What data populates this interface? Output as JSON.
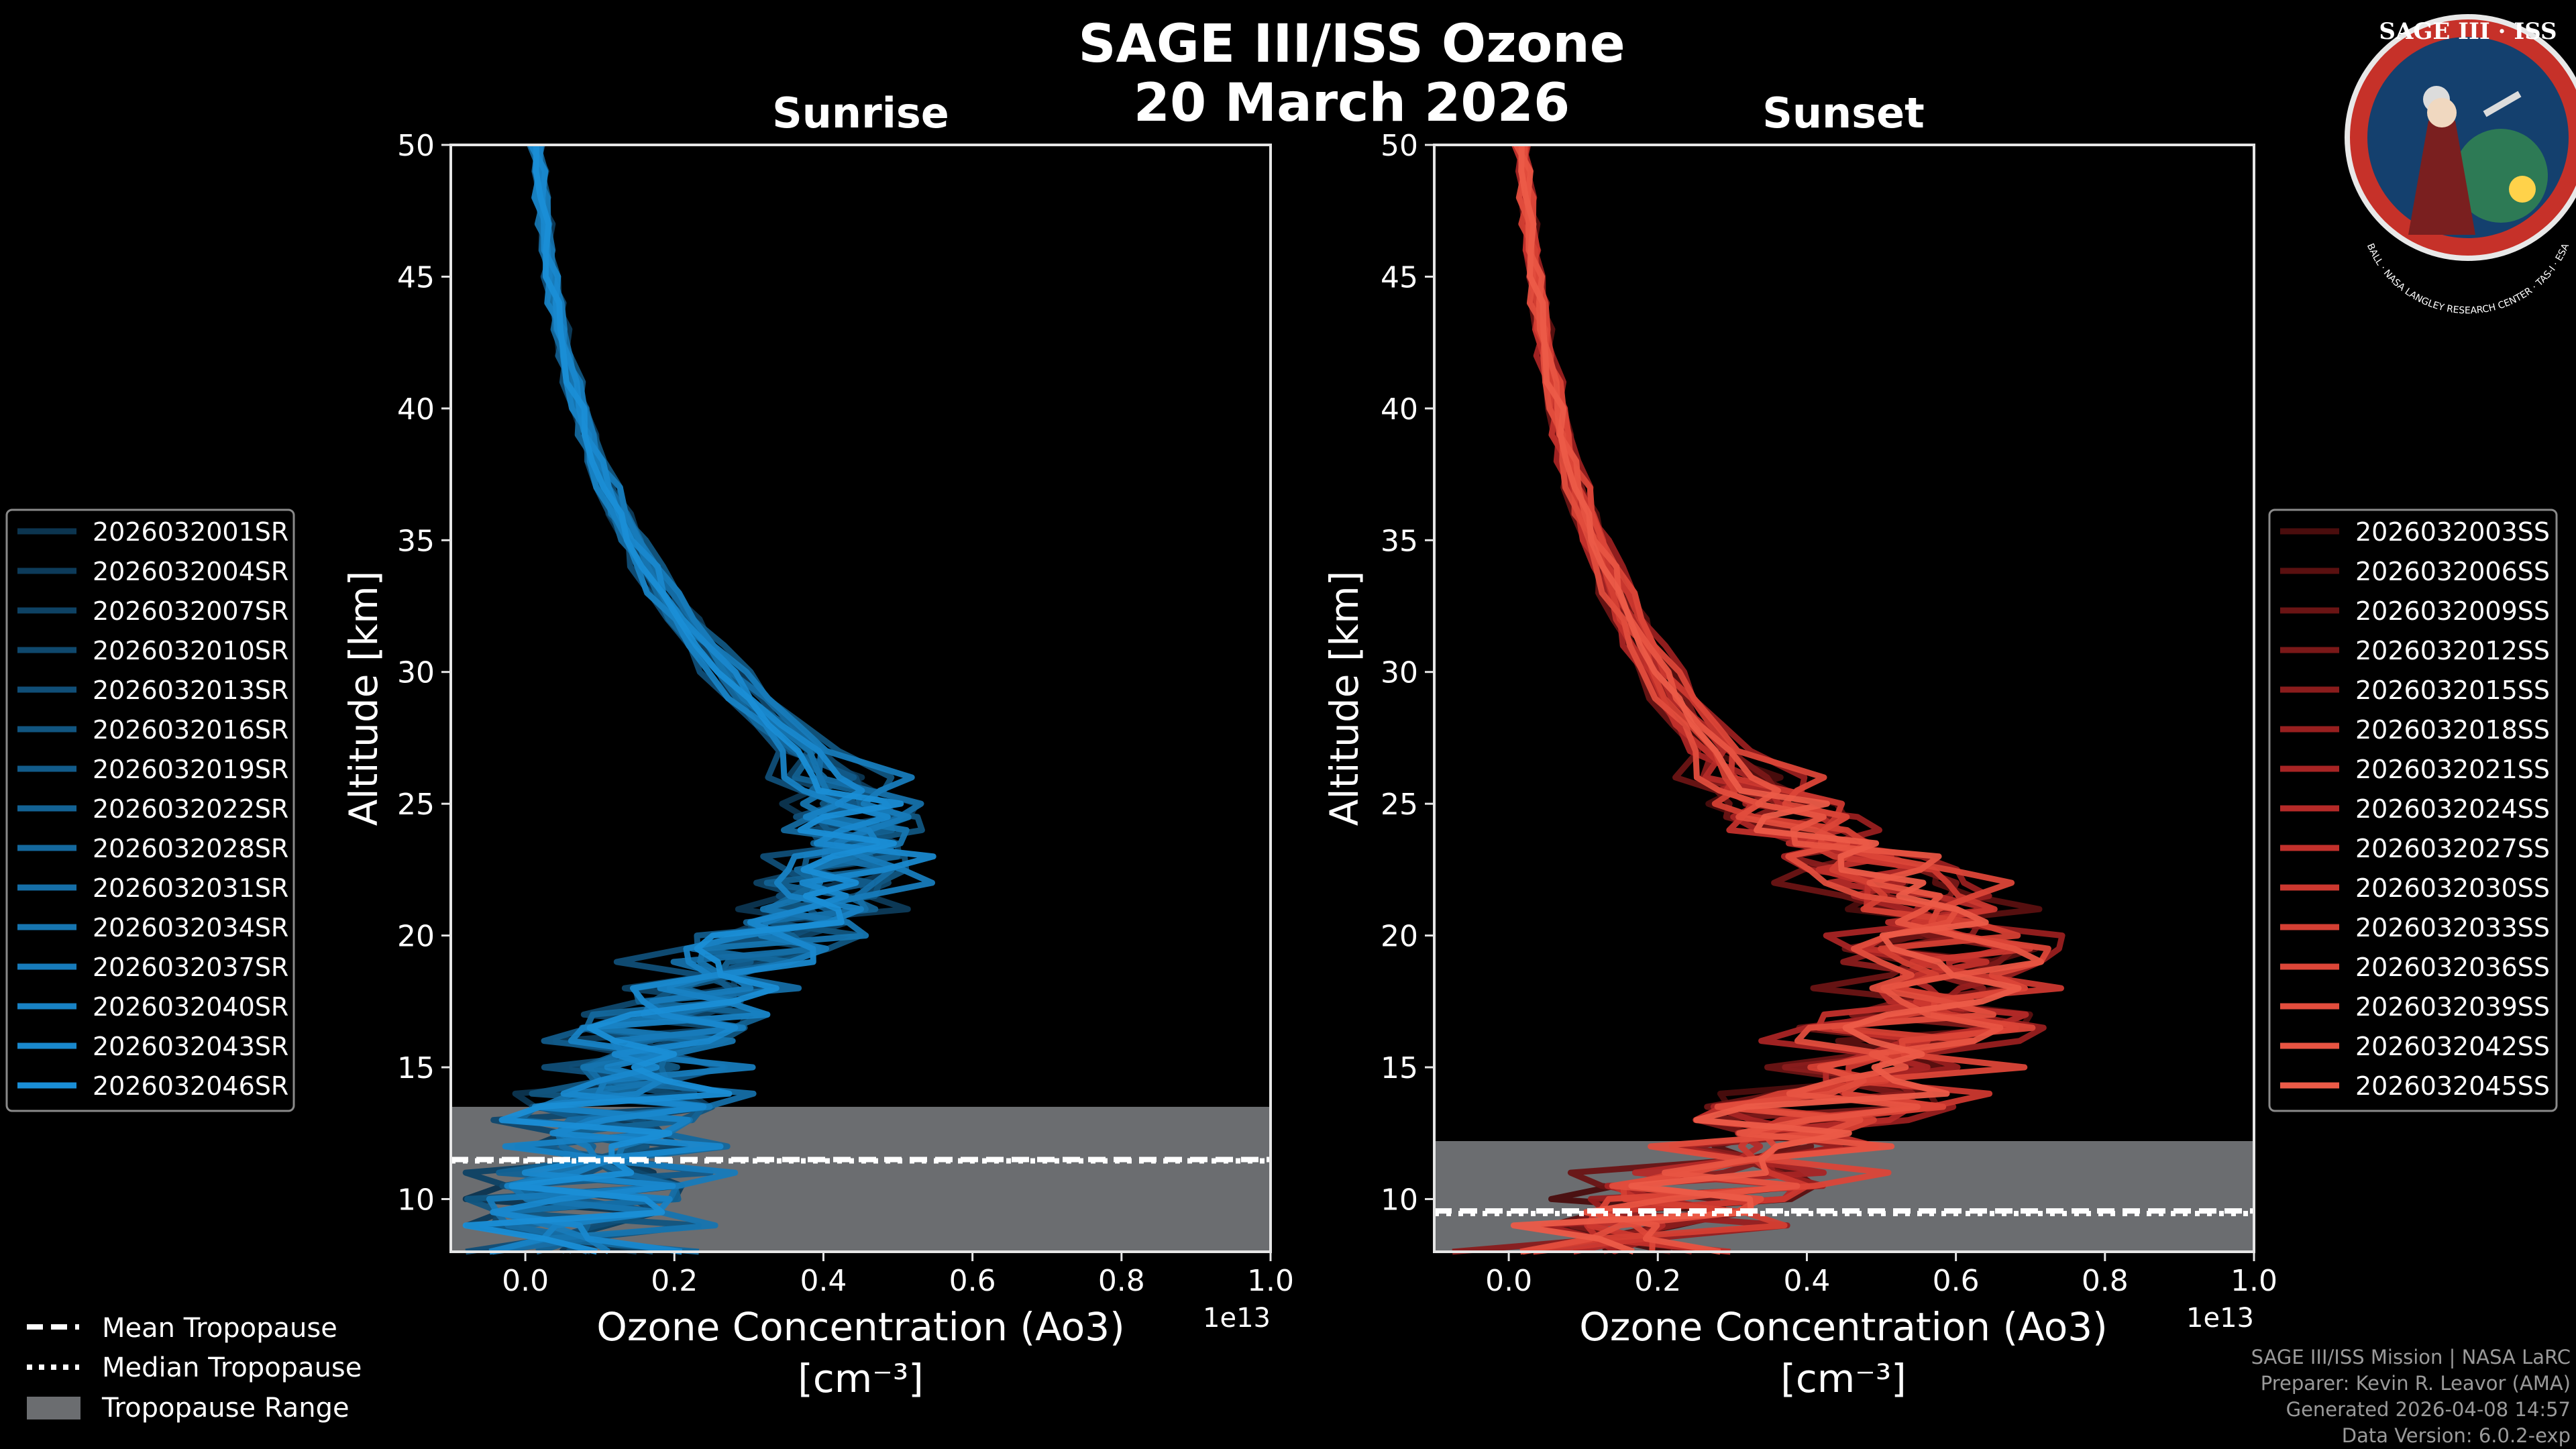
{
  "figure": {
    "title_line1": "SAGE III/ISS Ozone",
    "title_line2": "20 March 2026"
  },
  "logo": {
    "top_text": "SAGE III · ISS",
    "ring_text": "BALL · NASA LANGLEY RESEARCH CENTER · TAS-I · ESA"
  },
  "footer": {
    "line1": "SAGE III/ISS Mission | NASA LaRC",
    "line2": "Preparer: Kevin R. Leavor (AMA)",
    "line3": "Generated 2026-04-08 14:57",
    "line4": "Data Version: 6.0.2-exp"
  },
  "colors": {
    "background": "#000000",
    "sunrise_series": [
      "#0c3550",
      "#0d3b5a",
      "#0e4264",
      "#0f486d",
      "#104e77",
      "#115580",
      "#125b8a",
      "#136294",
      "#14689d",
      "#156ea7",
      "#1675b0",
      "#177bba",
      "#1882c4",
      "#1988cd",
      "#1a8ed6"
    ],
    "sunset_series": [
      "#4a0d0d",
      "#5a1010",
      "#6a1414",
      "#7a1818",
      "#8a1c1c",
      "#981f1f",
      "#a82424",
      "#b52a28",
      "#c2302b",
      "#cc382f",
      "#d43f33",
      "#dc4638",
      "#e24d3d",
      "#e85442",
      "#ec5b48"
    ],
    "tropopause_band": "#6b6d70"
  },
  "chart_data": [
    {
      "type": "line",
      "title": "Sunrise",
      "xlabel": "Ozone Concentration (Ao3)",
      "xlabel_unit": "[cm⁻³]",
      "ylabel": "Altitude [km]",
      "x_offset_label": "1e13",
      "xlim": [
        -0.1,
        1.0
      ],
      "ylim": [
        8,
        50
      ],
      "x_ticks": [
        "0.0",
        "0.2",
        "0.4",
        "0.6",
        "0.8",
        "1.0"
      ],
      "y_ticks": [
        "10",
        "15",
        "20",
        "25",
        "30",
        "35",
        "40",
        "45",
        "50"
      ],
      "altitudes_km": [
        8,
        9,
        10,
        11,
        12,
        13,
        14,
        15,
        16,
        17,
        18,
        19,
        20,
        21,
        22,
        23,
        24,
        25,
        26,
        27,
        28,
        29,
        30,
        31,
        32,
        33,
        34,
        35,
        36,
        37,
        38,
        39,
        40,
        41,
        42,
        43,
        44,
        45,
        46,
        47,
        48,
        49,
        50
      ],
      "mean_profile": [
        0.05,
        0.06,
        0.08,
        0.1,
        0.11,
        0.12,
        0.14,
        0.15,
        0.17,
        0.2,
        0.24,
        0.28,
        0.34,
        0.39,
        0.42,
        0.44,
        0.45,
        0.44,
        0.41,
        0.38,
        0.34,
        0.3,
        0.27,
        0.24,
        0.21,
        0.185,
        0.165,
        0.145,
        0.125,
        0.11,
        0.095,
        0.085,
        0.072,
        0.063,
        0.055,
        0.047,
        0.041,
        0.035,
        0.03,
        0.026,
        0.022,
        0.019,
        0.016
      ],
      "tropopause": {
        "mean_km": 11.5,
        "median_km": 11.45,
        "range_km": [
          8,
          13.5
        ]
      },
      "series": [
        {
          "name": "2026032001SR",
          "scale": 0.93
        },
        {
          "name": "2026032004SR",
          "scale": 1.07
        },
        {
          "name": "2026032007SR",
          "scale": 0.98
        },
        {
          "name": "2026032010SR",
          "scale": 1.03
        },
        {
          "name": "2026032013SR",
          "scale": 0.9
        },
        {
          "name": "2026032016SR",
          "scale": 1.1
        },
        {
          "name": "2026032019SR",
          "scale": 0.96
        },
        {
          "name": "2026032022SR",
          "scale": 1.01
        },
        {
          "name": "2026032028SR",
          "scale": 0.94
        },
        {
          "name": "2026032031SR",
          "scale": 1.05
        },
        {
          "name": "2026032034SR",
          "scale": 0.99
        },
        {
          "name": "2026032037SR",
          "scale": 1.08
        },
        {
          "name": "2026032040SR",
          "scale": 0.92
        },
        {
          "name": "2026032043SR",
          "scale": 1.02
        },
        {
          "name": "2026032046SR",
          "scale": 0.97
        }
      ]
    },
    {
      "type": "line",
      "title": "Sunset",
      "xlabel": "Ozone Concentration (Ao3)",
      "xlabel_unit": "[cm⁻³]",
      "ylabel": "Altitude [km]",
      "x_offset_label": "1e13",
      "xlim": [
        -0.1,
        1.0
      ],
      "ylim": [
        8,
        50
      ],
      "x_ticks": [
        "0.0",
        "0.2",
        "0.4",
        "0.6",
        "0.8",
        "1.0"
      ],
      "y_ticks": [
        "10",
        "15",
        "20",
        "25",
        "30",
        "35",
        "40",
        "45",
        "50"
      ],
      "altitudes_km": [
        8,
        9,
        10,
        11,
        12,
        13,
        14,
        15,
        16,
        17,
        18,
        19,
        20,
        21,
        22,
        23,
        24,
        25,
        26,
        27,
        28,
        29,
        30,
        31,
        32,
        33,
        34,
        35,
        36,
        37,
        38,
        39,
        40,
        41,
        42,
        43,
        44,
        45,
        46,
        47,
        48,
        49,
        50
      ],
      "mean_profile": [
        0.12,
        0.18,
        0.24,
        0.3,
        0.35,
        0.4,
        0.45,
        0.49,
        0.53,
        0.56,
        0.58,
        0.59,
        0.58,
        0.56,
        0.52,
        0.46,
        0.4,
        0.35,
        0.31,
        0.28,
        0.25,
        0.22,
        0.2,
        0.18,
        0.16,
        0.145,
        0.13,
        0.115,
        0.1,
        0.09,
        0.08,
        0.072,
        0.064,
        0.057,
        0.051,
        0.045,
        0.04,
        0.035,
        0.031,
        0.027,
        0.024,
        0.021,
        0.018
      ],
      "tropopause": {
        "mean_km": 9.55,
        "median_km": 9.45,
        "range_km": [
          8,
          12.2
        ]
      },
      "series": [
        {
          "name": "2026032003SS",
          "scale": 0.95
        },
        {
          "name": "2026032006SS",
          "scale": 1.1
        },
        {
          "name": "2026032009SS",
          "scale": 0.88
        },
        {
          "name": "2026032012SS",
          "scale": 1.05
        },
        {
          "name": "2026032015SS",
          "scale": 0.98
        },
        {
          "name": "2026032018SS",
          "scale": 1.15
        },
        {
          "name": "2026032021SS",
          "scale": 0.9
        },
        {
          "name": "2026032024SS",
          "scale": 1.02
        },
        {
          "name": "2026032027SS",
          "scale": 0.93
        },
        {
          "name": "2026032030SS",
          "scale": 1.08
        },
        {
          "name": "2026032033SS",
          "scale": 0.97
        },
        {
          "name": "2026032036SS",
          "scale": 1.12
        },
        {
          "name": "2026032039SS",
          "scale": 0.91
        },
        {
          "name": "2026032042SS",
          "scale": 1.04
        },
        {
          "name": "2026032045SS",
          "scale": 1.0
        }
      ]
    }
  ],
  "shared_legend": {
    "mean": "Mean Tropopause",
    "median": "Median Tropopause",
    "range": "Tropopause Range"
  }
}
